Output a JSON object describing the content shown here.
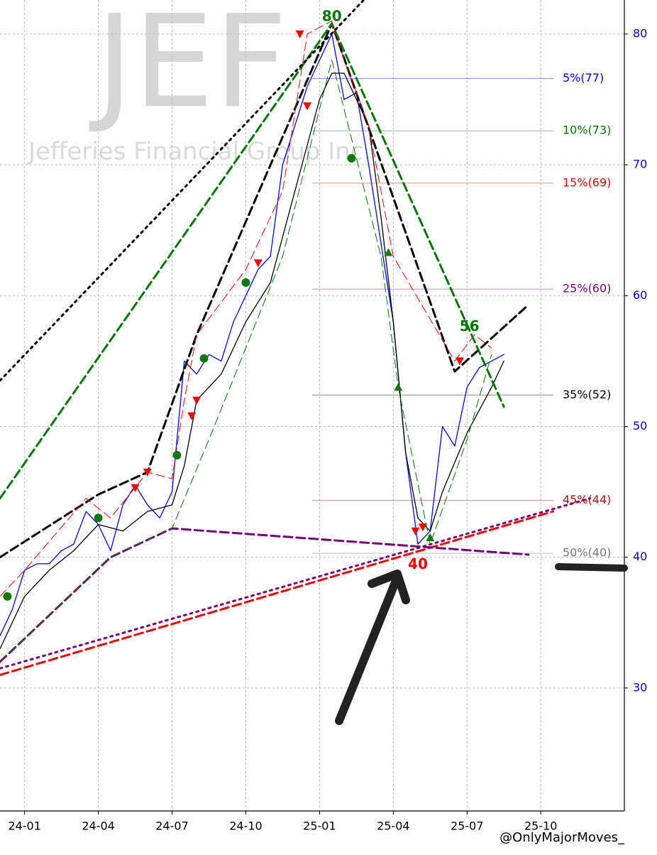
{
  "chart_data": {
    "type": "line",
    "title": "JEF",
    "subtitle": "Jefferies Financial Group Inc.",
    "watermark": "@OnlyMajorMoves_",
    "xlim": [
      -1.0,
      24.4
    ],
    "ylim": [
      20.6,
      82.6
    ],
    "xticks": [
      {
        "value": 0,
        "label": "24-01"
      },
      {
        "value": 3,
        "label": "24-04"
      },
      {
        "value": 6,
        "label": "24-07"
      },
      {
        "value": 9,
        "label": "24-10"
      },
      {
        "value": 12,
        "label": "25-01"
      },
      {
        "value": 15,
        "label": "25-04"
      },
      {
        "value": 18,
        "label": "25-07"
      },
      {
        "value": 21,
        "label": "25-10"
      }
    ],
    "yticks": [
      30,
      40,
      50,
      60,
      70,
      80
    ],
    "grid": true,
    "series": [
      {
        "color": "#0000ee",
        "dash": "solid",
        "width": 1.3,
        "x": [
          -1,
          -0.5,
          0,
          0.5,
          1,
          1.5,
          2,
          2.5,
          3,
          3.5,
          4,
          4.5,
          5,
          5.5,
          6,
          6.5,
          7,
          7.5,
          8,
          8.5,
          9,
          9.5,
          10,
          10.5,
          11,
          11.5,
          12,
          12.5,
          13,
          13.5,
          14,
          14.5,
          15,
          15.5,
          16,
          16.5,
          17,
          17.5,
          18,
          18.5,
          19,
          19.5
        ],
        "values": [
          34,
          36,
          39,
          39.5,
          39.5,
          40.5,
          41,
          43.5,
          42.5,
          40.5,
          44,
          45.5,
          44,
          43,
          45,
          55,
          54,
          55.5,
          55,
          58,
          60,
          62,
          63,
          70,
          73,
          76,
          78,
          80,
          75,
          75.5,
          70,
          64,
          58,
          48,
          41,
          42,
          50,
          48.5,
          53,
          54.5,
          55,
          55.5
        ]
      },
      {
        "color": "#000000",
        "dash": "solid",
        "width": 1.3,
        "x": [
          -1,
          0,
          1,
          2,
          3,
          4,
          5,
          6,
          6.5,
          7,
          8,
          9,
          10,
          11,
          12,
          12.5,
          13,
          14,
          14.5,
          15,
          15.5,
          16,
          16.5,
          17,
          18,
          19,
          19.5
        ],
        "values": [
          33,
          37,
          39,
          40.5,
          42.5,
          42,
          43.5,
          44,
          47,
          52,
          54,
          58,
          61,
          68,
          75,
          77,
          77,
          73,
          66,
          58,
          48,
          43,
          42,
          45,
          49.5,
          53,
          55
        ]
      },
      {
        "color": "#000000",
        "dash": "dashed",
        "width": 3,
        "x": [
          -1,
          3,
          5,
          7,
          12.5,
          17.5,
          20.5
        ],
        "values": [
          40,
          44.8,
          46.5,
          57,
          80.8,
          54.2,
          59.3
        ]
      },
      {
        "color": "#007700",
        "dash": "dashed",
        "width": 3,
        "x": [
          -1,
          12.5,
          19.5
        ],
        "values": [
          44.5,
          80.8,
          51.5
        ]
      },
      {
        "color": "#ee0000",
        "dash": "dashed",
        "width": 3,
        "x": [
          -1,
          21.5
        ],
        "values": [
          31,
          43.5
        ]
      },
      {
        "color": "#770077",
        "dash": "dotted",
        "width": 3,
        "x": [
          -1,
          23
        ],
        "values": [
          31.5,
          44.5
        ]
      },
      {
        "color": "#770077",
        "dash": "dashed",
        "width": 3,
        "x": [
          -1,
          3.5,
          6,
          20.5
        ],
        "values": [
          32,
          40,
          42.2,
          40.2
        ]
      },
      {
        "color": "#000000",
        "dash": "dotted",
        "width": 3,
        "x": [
          -1,
          14
        ],
        "values": [
          53.5,
          83
        ]
      },
      {
        "color": "#ee0000",
        "dash": "dashed",
        "width": 1,
        "x": [
          -1,
          0,
          2.5,
          3.5,
          5,
          6,
          6.5,
          7,
          9,
          10.5,
          11.5,
          12.5,
          13,
          14,
          15,
          17.5,
          18.3,
          19
        ],
        "values": [
          37,
          39,
          44.5,
          43,
          46.5,
          46,
          52,
          57,
          62,
          68,
          80,
          81,
          78,
          73,
          63,
          55,
          57,
          56
        ]
      },
      {
        "color": "#007700",
        "dash": "dashed",
        "width": 1,
        "x": [
          -1,
          3.5,
          6,
          7.5,
          10.5,
          12.5,
          14.5,
          15.2,
          16.5,
          18,
          19
        ],
        "values": [
          32,
          40,
          42.2,
          49,
          63,
          78,
          63,
          53,
          41,
          49,
          55.5
        ]
      }
    ],
    "levels": [
      {
        "label": "5%(77)",
        "value": 76.6,
        "color": "#0000ee"
      },
      {
        "label": "10%(73)",
        "value": 72.6,
        "color": "#007700"
      },
      {
        "label": "15%(69)",
        "value": 68.6,
        "color": "#ee0000"
      },
      {
        "label": "25%(60)",
        "value": 60.5,
        "color": "#770077"
      },
      {
        "label": "35%(52)",
        "value": 52.4,
        "color": "#000000"
      },
      {
        "label": "45%(44)",
        "value": 44.35,
        "color": "#aa1111"
      },
      {
        "label": "50%(40)",
        "value": 40.3,
        "color": "#777777"
      }
    ],
    "markers": [
      {
        "shape": "down",
        "color": "#ee0000",
        "x": [
          11.2,
          11.5,
          9.5,
          7,
          6.8,
          5,
          4.5,
          17.7,
          15.9,
          16.2
        ],
        "values": [
          80,
          74.5,
          62.5,
          52,
          50.8,
          46.5,
          45.3,
          55,
          42,
          42.3
        ]
      },
      {
        "shape": "circle",
        "color": "#117711",
        "x": [
          -0.7,
          3,
          6.2,
          7.3,
          9,
          13.3
        ],
        "values": [
          37,
          43,
          47.8,
          55.2,
          61,
          70.5
        ]
      },
      {
        "shape": "up",
        "color": "#117711",
        "x": [
          15.2,
          14.8,
          16.5
        ],
        "values": [
          53,
          63.3,
          41.5
        ]
      }
    ],
    "annotations": [
      {
        "label": "80",
        "x": 12.5,
        "y": 81.3,
        "color": "#007700"
      },
      {
        "label": "56",
        "x": 18.1,
        "y": 57.6,
        "color": "#007700"
      },
      {
        "label": "40",
        "x": 16,
        "y": 39.4,
        "color": "#ee0000"
      }
    ]
  }
}
